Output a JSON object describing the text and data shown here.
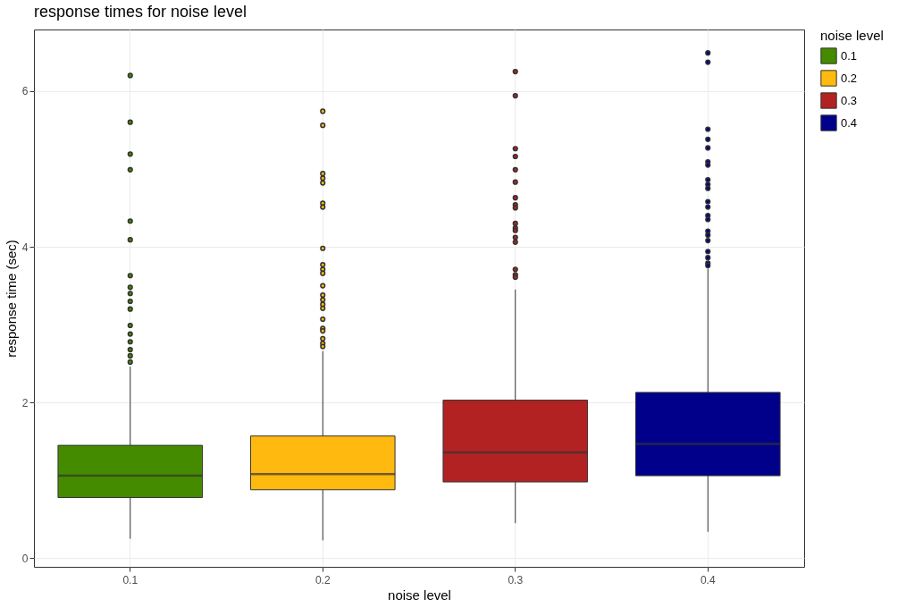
{
  "chart_data": {
    "type": "box",
    "title": "response times for noise level",
    "xlabel": "noise level",
    "ylabel": "response time (sec)",
    "legend_title": "noise level",
    "categories": [
      "0.1",
      "0.2",
      "0.3",
      "0.4"
    ],
    "series": [
      {
        "name": "0.1",
        "color": "#458b00",
        "boxes": [
          {
            "low": 0.25,
            "q1": 0.78,
            "median": 1.06,
            "q3": 1.45,
            "high": 2.46,
            "outliers": [
              6.2,
              5.6,
              5.19,
              4.99,
              4.33,
              4.09,
              3.63,
              3.48,
              3.4,
              3.3,
              3.2,
              2.99,
              2.88,
              2.78,
              2.68,
              2.6,
              2.52
            ]
          },
          null,
          null,
          null
        ]
      },
      {
        "name": "0.2",
        "color": "#ffb90f",
        "boxes": [
          null,
          {
            "low": 0.23,
            "q1": 0.88,
            "median": 1.08,
            "q3": 1.57,
            "high": 2.66,
            "outliers": [
              5.74,
              5.56,
              4.94,
              4.88,
              4.82,
              4.56,
              4.51,
              3.98,
              3.77,
              3.71,
              3.66,
              3.5,
              3.38,
              3.32,
              3.26,
              3.21,
              3.07,
              2.95,
              2.92,
              2.82,
              2.76,
              2.72
            ]
          },
          null,
          null
        ]
      },
      {
        "name": "0.3",
        "color": "#b22222",
        "boxes": [
          null,
          null,
          {
            "low": 0.45,
            "q1": 0.98,
            "median": 1.36,
            "q3": 2.03,
            "high": 3.45,
            "outliers": [
              6.25,
              5.94,
              5.26,
              5.16,
              4.99,
              4.83,
              4.63,
              4.54,
              4.5,
              4.3,
              4.24,
              4.21,
              4.12,
              4.06,
              3.71,
              3.64,
              3.61
            ]
          },
          null
        ]
      },
      {
        "name": "0.4",
        "color": "#00008b",
        "boxes": [
          null,
          null,
          null,
          {
            "low": 0.34,
            "q1": 1.06,
            "median": 1.47,
            "q3": 2.13,
            "high": 3.72,
            "outliers": [
              6.49,
              6.37,
              5.51,
              5.38,
              5.27,
              5.09,
              5.05,
              4.86,
              4.8,
              4.75,
              4.58,
              4.51,
              4.4,
              4.35,
              4.2,
              4.15,
              4.08,
              3.94,
              3.86,
              3.79,
              3.76
            ]
          }
        ]
      }
    ],
    "ylim": [
      -0.11,
      6.79
    ],
    "yticks": [
      0,
      2,
      4,
      6
    ],
    "grid": true,
    "legend": "right"
  }
}
